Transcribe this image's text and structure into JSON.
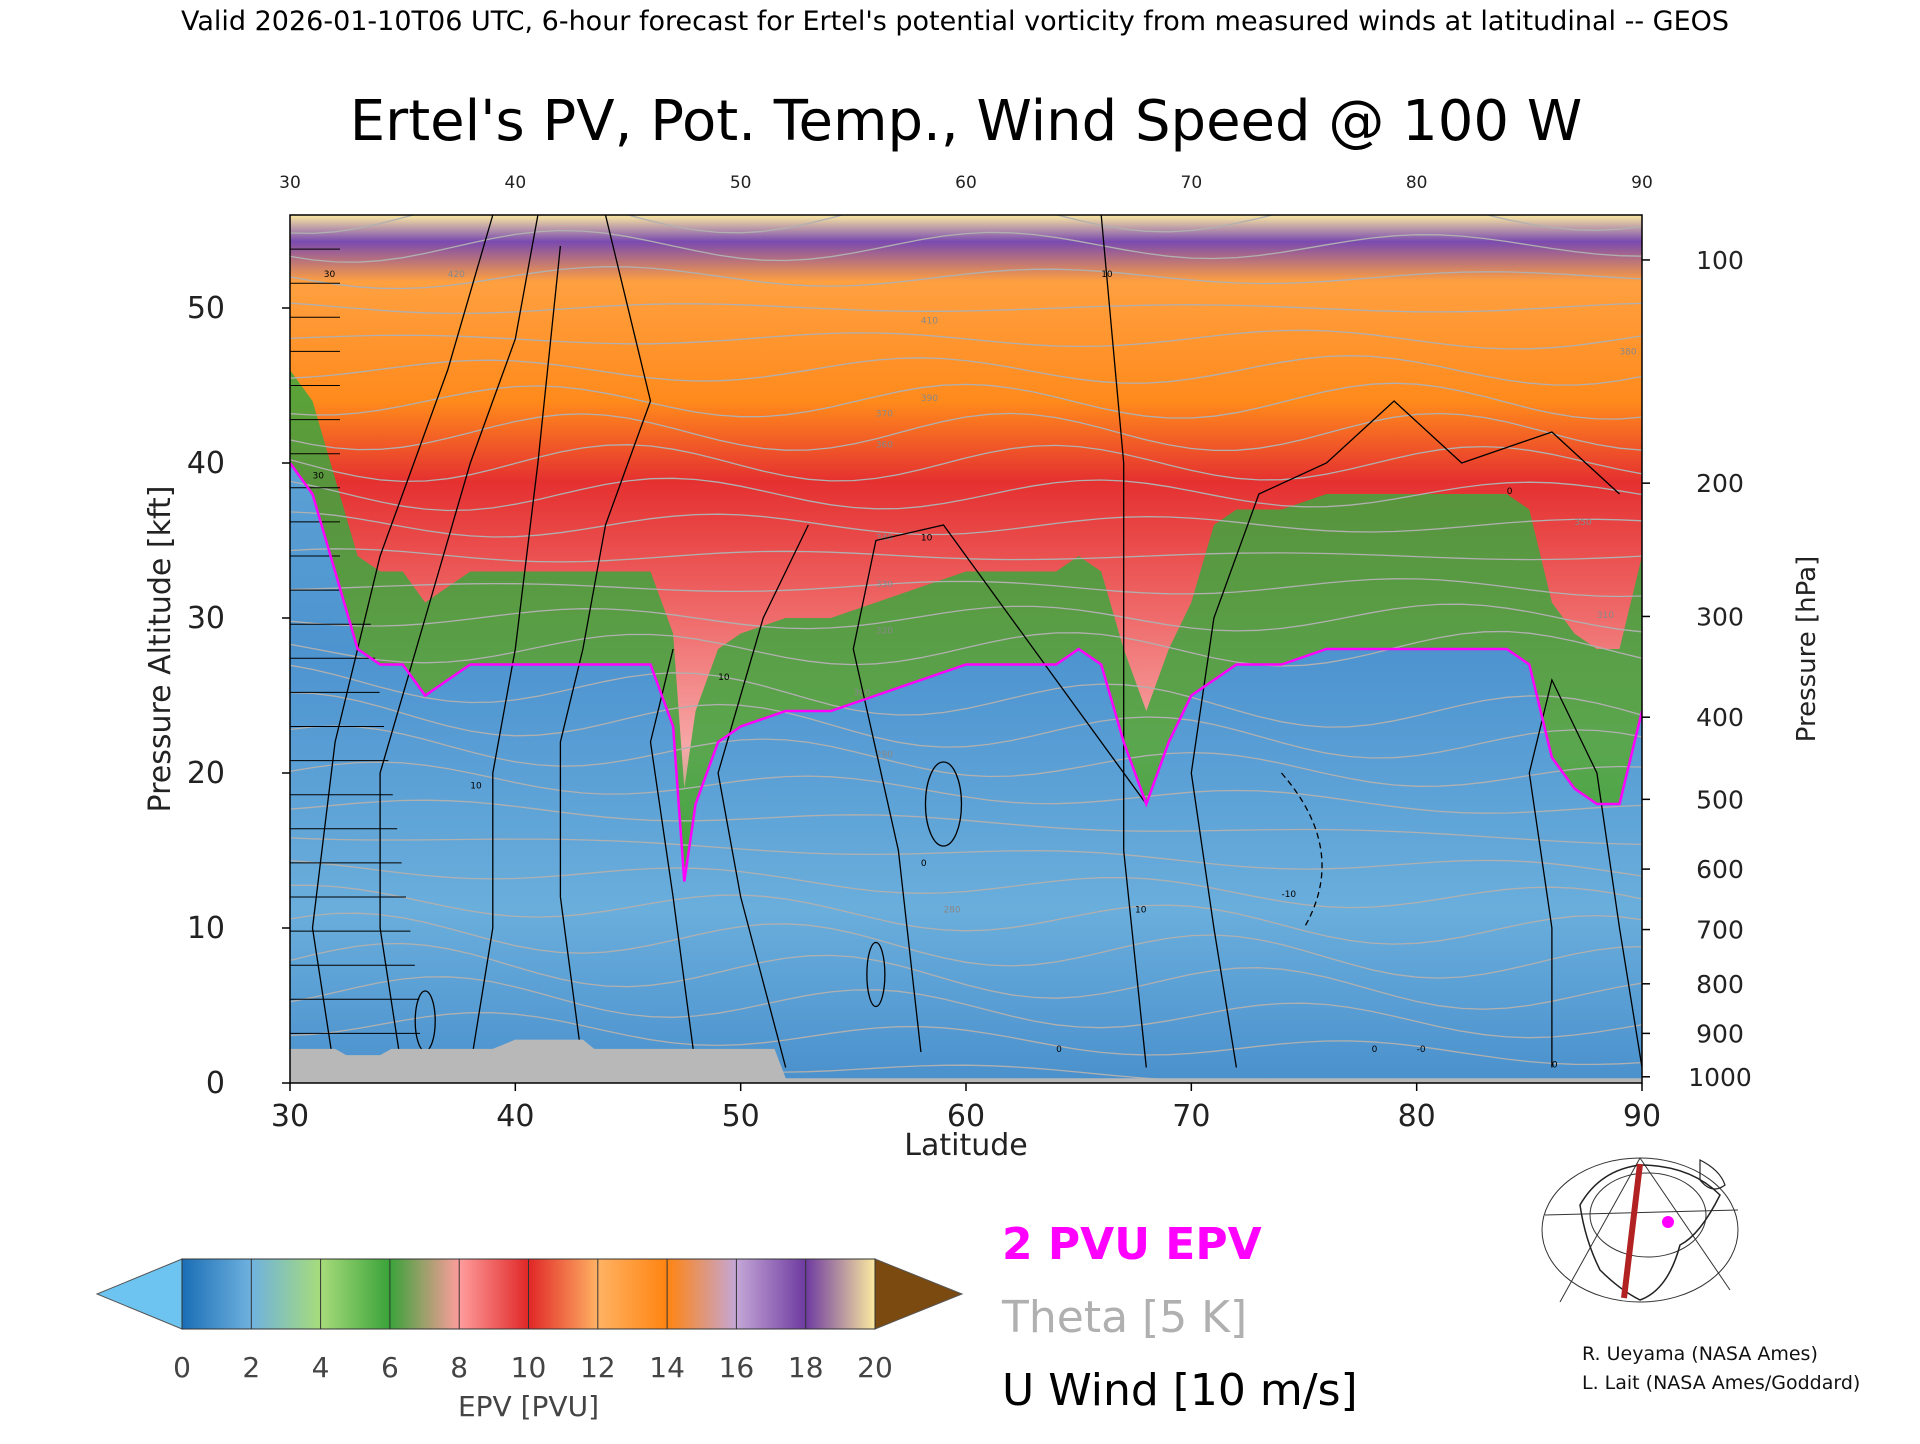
{
  "header": {
    "caption": "Valid 2026-01-10T06 UTC, 6-hour forecast for Ertel's potential vorticity from measured winds at latitudinal -- GEOS"
  },
  "chart_data": {
    "type": "heatmap",
    "title": "Ertel's PV, Pot. Temp., Wind Speed @ 100 W",
    "xlabel": "Latitude",
    "ylabel_left": "Pressure Altitude [kft]",
    "ylabel_right": "Pressure [hPa]",
    "xlim": [
      30,
      90
    ],
    "ylim_left": [
      0,
      56
    ],
    "x_ticks": [
      30,
      40,
      50,
      60,
      70,
      80,
      90
    ],
    "top_ticks": [
      30,
      40,
      50,
      60,
      70,
      80,
      90
    ],
    "y_ticks_left": [
      0,
      10,
      20,
      30,
      40,
      50
    ],
    "y_ticks_right": [
      {
        "hPa": 100,
        "kft": 53.1
      },
      {
        "hPa": 200,
        "kft": 38.7
      },
      {
        "hPa": 300,
        "kft": 30.1
      },
      {
        "hPa": 400,
        "kft": 23.6
      },
      {
        "hPa": 500,
        "kft": 18.3
      },
      {
        "hPa": 600,
        "kft": 13.8
      },
      {
        "hPa": 700,
        "kft": 9.9
      },
      {
        "hPa": 800,
        "kft": 6.4
      },
      {
        "hPa": 900,
        "kft": 3.2
      },
      {
        "hPa": 1000,
        "kft": 0.4
      }
    ],
    "dynamic_tropopause_kft": [
      [
        30,
        40
      ],
      [
        31,
        38
      ],
      [
        32,
        33
      ],
      [
        33,
        28
      ],
      [
        34,
        27
      ],
      [
        35,
        27
      ],
      [
        36,
        25
      ],
      [
        37,
        26
      ],
      [
        38,
        27
      ],
      [
        40,
        27
      ],
      [
        42,
        27
      ],
      [
        44,
        27
      ],
      [
        46,
        27
      ],
      [
        47,
        23
      ],
      [
        47.5,
        13
      ],
      [
        48,
        18
      ],
      [
        49,
        22
      ],
      [
        50,
        23
      ],
      [
        52,
        24
      ],
      [
        54,
        24
      ],
      [
        56,
        25
      ],
      [
        58,
        26
      ],
      [
        60,
        27
      ],
      [
        62,
        27
      ],
      [
        64,
        27
      ],
      [
        65,
        28
      ],
      [
        66,
        27
      ],
      [
        67,
        22
      ],
      [
        68,
        18
      ],
      [
        69,
        22
      ],
      [
        70,
        25
      ],
      [
        71,
        26
      ],
      [
        72,
        27
      ],
      [
        74,
        27
      ],
      [
        76,
        28
      ],
      [
        78,
        28
      ],
      [
        80,
        28
      ],
      [
        82,
        28
      ],
      [
        84,
        28
      ],
      [
        85,
        27
      ],
      [
        86,
        21
      ],
      [
        87,
        19
      ],
      [
        88,
        18
      ],
      [
        89,
        18
      ],
      [
        90,
        24
      ]
    ],
    "epv_colorbar": {
      "label": "EPV [PVU]",
      "ticks": [
        0,
        2,
        4,
        6,
        8,
        10,
        12,
        14,
        16,
        18,
        20
      ],
      "colors": [
        "#1a6eb5",
        "#6fb2df",
        "#a7dc7a",
        "#3aa23a",
        "#ff9d9d",
        "#e02727",
        "#ffb264",
        "#ff8411",
        "#c4a7d7",
        "#6e3aa0",
        "#fbeaa0"
      ],
      "under_color": "#6ec4f0",
      "over_color": "#7a4a10"
    },
    "legend": {
      "pv_label": "2 PVU EPV",
      "pv_color": "#ff00ff",
      "theta_label": "Theta [5 K]",
      "theta_color": "#b0b0b0",
      "wind_label": "U Wind [10 m/s]",
      "wind_color": "#000000"
    },
    "theta_labels": [
      "420",
      "410",
      "390",
      "380",
      "370",
      "360",
      "350",
      "340",
      "330",
      "320",
      "310",
      "300",
      "290",
      "280"
    ],
    "wind_labels": [
      "30",
      "30",
      "10",
      "0",
      "10",
      "10",
      "10",
      "10",
      "0",
      "-10",
      "0",
      "0",
      "0",
      "-0"
    ]
  },
  "credits": {
    "line1": "R. Ueyama (NASA Ames)",
    "line2": "L. Lait (NASA Ames/Goddard)"
  },
  "map_inset": {
    "transect_color": "#b22222",
    "marker_color": "#ff00ff"
  }
}
